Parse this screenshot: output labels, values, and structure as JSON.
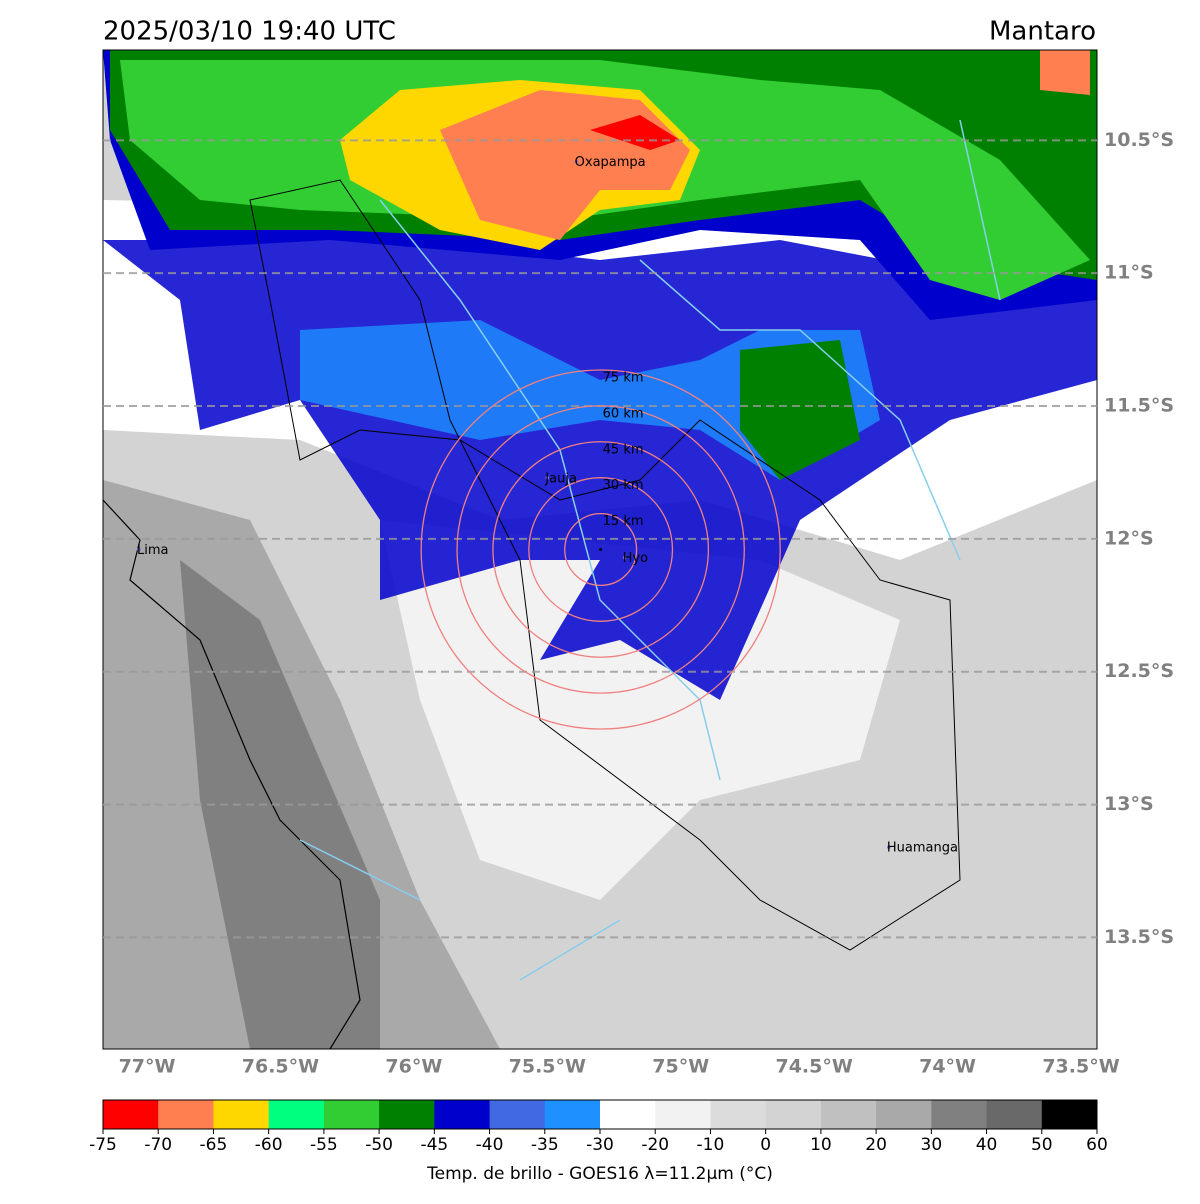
{
  "header": {
    "title": "2025/03/10 19:40 UTC",
    "region": "Mantaro"
  },
  "map": {
    "xlim": [
      -77.165,
      -73.44
    ],
    "ylim": [
      -13.92,
      -10.16
    ],
    "xticks": [
      {
        "value": -77,
        "label": "77°W"
      },
      {
        "value": -76.5,
        "label": "76.5°W"
      },
      {
        "value": -76,
        "label": "76°W"
      },
      {
        "value": -75.5,
        "label": "75.5°W"
      },
      {
        "value": -75,
        "label": "75°W"
      },
      {
        "value": -74.5,
        "label": "74.5°W"
      },
      {
        "value": -74,
        "label": "74°W"
      },
      {
        "value": -73.5,
        "label": "73.5°W"
      }
    ],
    "yticks": [
      {
        "value": -10.5,
        "label": "10.5°S"
      },
      {
        "value": -11,
        "label": "11°S"
      },
      {
        "value": -11.5,
        "label": "11.5°S"
      },
      {
        "value": -12,
        "label": "12°S"
      },
      {
        "value": -12.5,
        "label": "12.5°S"
      },
      {
        "value": -13,
        "label": "13°S"
      },
      {
        "value": -13.5,
        "label": "13.5°S"
      }
    ],
    "cities": [
      {
        "name": "Oxapampa",
        "lon": -75.39,
        "lat": -10.58
      },
      {
        "name": "Jauja",
        "lon": -75.5,
        "lat": -11.77
      },
      {
        "name": "Hyo",
        "lon": -75.21,
        "lat": -12.07
      },
      {
        "name": "Lima",
        "lon": -77.03,
        "lat": -12.04
      },
      {
        "name": "Huamanga",
        "lon": -74.22,
        "lat": -13.16
      }
    ],
    "ring_center": {
      "lon": -75.3,
      "lat": -12.04
    },
    "rings": [
      "15 km",
      "30 km",
      "45 km",
      "60 km",
      "75 km"
    ]
  },
  "colorbar": {
    "ticks": [
      -75,
      -70,
      -65,
      -60,
      -55,
      -50,
      -45,
      -40,
      -35,
      -30,
      -20,
      -10,
      0,
      10,
      20,
      30,
      40,
      50,
      60
    ],
    "colors": [
      "#ff0000",
      "#ff7f50",
      "#ffd700",
      "#00ff7f",
      "#32cd32",
      "#008000",
      "#0000cd",
      "#4169e1",
      "#1e90ff",
      "#ffffff",
      "#f2f2f2",
      "#dcdcdc",
      "#d3d3d3",
      "#c0c0c0",
      "#a9a9a9",
      "#808080",
      "#696969",
      "#000000"
    ],
    "label": "Temp. de brillo - GOES16 λ=11.2μm (°C)"
  }
}
